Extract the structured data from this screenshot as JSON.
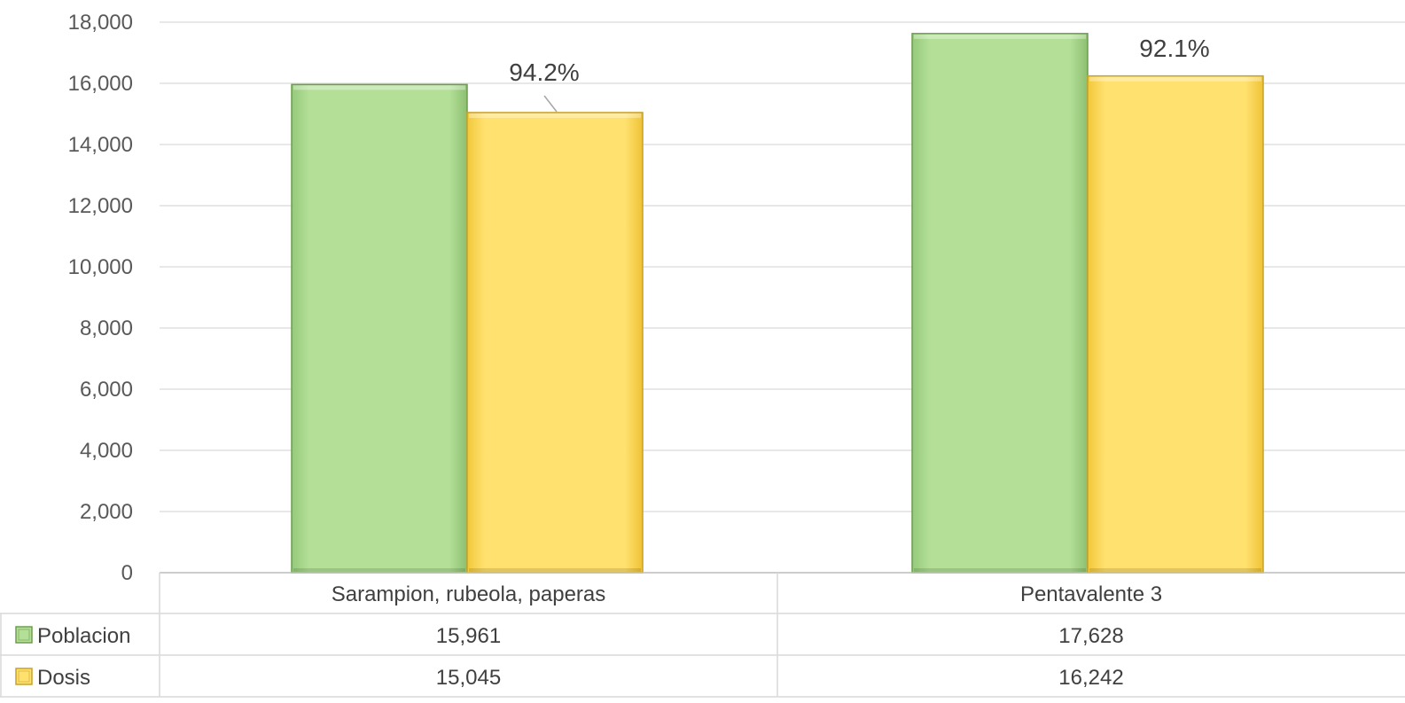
{
  "chart_data": {
    "type": "bar",
    "categories": [
      "Sarampion, rubeola, paperas",
      "Pentavalente 3"
    ],
    "series": [
      {
        "name": "Poblacion",
        "values": [
          15961,
          17628
        ],
        "color": "#b3df97",
        "edge": "#6d9d4f"
      },
      {
        "name": "Dosis",
        "values": [
          15045,
          16242
        ],
        "color": "#ffe16f",
        "edge": "#c9a227"
      }
    ],
    "data_labels": [
      "15,961",
      "17,628",
      "15,045",
      "16,242"
    ],
    "percent_labels": [
      "94.2%",
      "92.1%"
    ],
    "y_ticks": [
      "0",
      "2,000",
      "4,000",
      "6,000",
      "8,000",
      "10,000",
      "12,000",
      "14,000",
      "16,000",
      "18,000"
    ],
    "ylim": [
      0,
      18000
    ],
    "grid": true,
    "legend": "data-table",
    "title": "",
    "xlabel": "",
    "ylabel": ""
  }
}
